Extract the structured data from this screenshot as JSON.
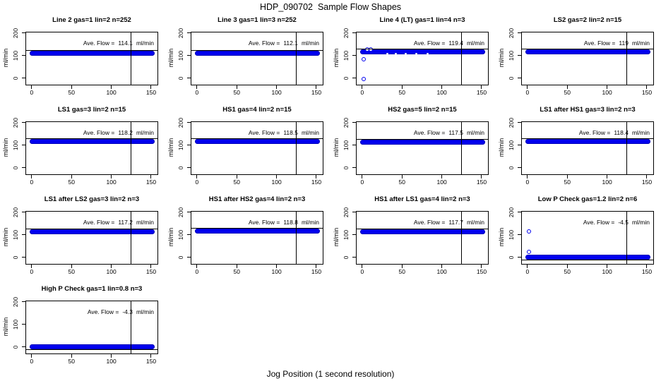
{
  "page": {
    "title": "HDP_090702  Sample Flow Shapes",
    "xlabel": "Jog Position (1 second resolution)"
  },
  "colors": {
    "point_blue": "#0000EE",
    "axis_black": "#000000",
    "background": "#FFFFFF"
  },
  "chart_data": {
    "type": "scatter",
    "title": "HDP_090702  Sample Flow Shapes",
    "xlabel": "Jog Position (1 second resolution)",
    "ylabel": "ml/min",
    "ave_label": "Ave. Flow =",
    "unit": "ml/min",
    "x_ticks": [
      0,
      50,
      100,
      150
    ],
    "y_ticks": [
      0,
      100,
      200
    ],
    "xlim": [
      -7,
      158
    ],
    "ylim": [
      -29,
      203
    ],
    "x_start": 0,
    "x_end": 152,
    "vline_x": 125,
    "grid": false,
    "layout": "4x4 grid, 13 panels, last row single panel",
    "plots": [
      {
        "title": "Line 2 gas=1 lin=2 n=252",
        "ave_flow": "114.1",
        "band_level": 112,
        "refline_level": 124,
        "outliers": []
      },
      {
        "title": "Line 3 gas=1 lin=3 n=252",
        "ave_flow": "112.1",
        "band_level": 110,
        "refline_level": 122,
        "outliers": []
      },
      {
        "title": "Line 4 (LT) gas=1 lin=4 n=3",
        "ave_flow": "119.4",
        "band_level": 116,
        "refline_level": 128,
        "outliers": [
          [
            2,
            -4
          ],
          [
            2,
            85
          ],
          [
            6,
            128
          ],
          [
            11,
            129
          ]
        ],
        "specks": [
          32,
          42,
          55,
          68,
          82
        ]
      },
      {
        "title": "LS2 gas=2 lin=2 n=15",
        "ave_flow": "119",
        "band_level": 117,
        "refline_level": 129,
        "outliers": []
      },
      {
        "title": "LS1 gas=3 lin=2 n=15",
        "ave_flow": "118.2",
        "band_level": 116,
        "refline_level": 128,
        "outliers": []
      },
      {
        "title": "HS1 gas=4 lin=2 n=15",
        "ave_flow": "118.5",
        "band_level": 116,
        "refline_level": 128,
        "outliers": []
      },
      {
        "title": "HS2 gas=5 lin=2 n=15",
        "ave_flow": "117.5",
        "band_level": 115,
        "refline_level": 127,
        "outliers": []
      },
      {
        "title": "LS1 after HS1 gas=3 lin=2 n=3",
        "ave_flow": "118.4",
        "band_level": 116,
        "refline_level": 128,
        "outliers": []
      },
      {
        "title": "LS1 after LS2 gas=3 lin=2 n=3",
        "ave_flow": "117.2",
        "band_level": 115,
        "refline_level": 127,
        "outliers": []
      },
      {
        "title": "HS1 after HS2 gas=4 lin=2 n=3",
        "ave_flow": "118.8",
        "band_level": 116,
        "refline_level": 128,
        "outliers": []
      },
      {
        "title": "HS1 after LS1 gas=4 lin=2 n=3",
        "ave_flow": "117.7",
        "band_level": 115,
        "refline_level": 127,
        "outliers": []
      },
      {
        "title": "Low P Check gas=1.2 lin=2 n=6",
        "ave_flow": "-4.5",
        "band_level": 0,
        "refline_level": -13,
        "outliers": [
          [
            2,
            115
          ],
          [
            2,
            25
          ]
        ]
      },
      {
        "title": "High P Check gas=1 lin=0.8 n=3",
        "ave_flow": "-4.3",
        "band_level": 0,
        "refline_level": -13,
        "outliers": []
      }
    ]
  }
}
